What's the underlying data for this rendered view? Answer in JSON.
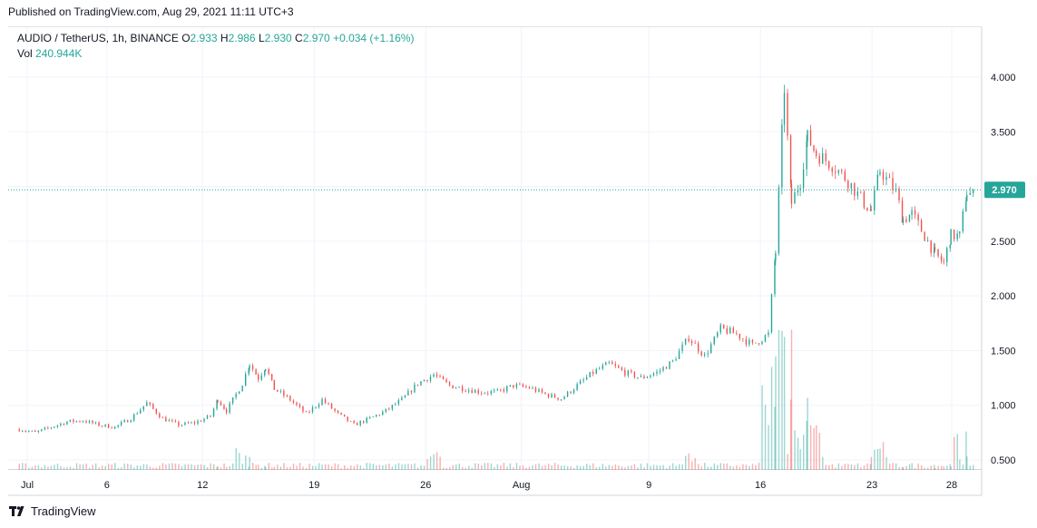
{
  "header": {
    "published": "Published on TradingView.com, Aug 29, 2021 11:11 UTC+3"
  },
  "legend": {
    "symbol": "AUDIO / TetherUS, 1h, BINANCE",
    "o_label": "O",
    "o_value": "2.933",
    "h_label": "H",
    "h_value": "2.986",
    "l_label": "L",
    "l_value": "2.930",
    "c_label": "C",
    "c_value": "2.970",
    "change": "+0.034 (+1.16%)",
    "vol_label": "Vol",
    "vol_value": "240.944K"
  },
  "footer": {
    "brand": "TradingView",
    "logo_icon": "tradingview-logo-icon"
  },
  "colors": {
    "up": "#26a69a",
    "down": "#ef5350",
    "grid": "#f0f3fa",
    "axis": "#d1d4dc"
  },
  "chart_data": {
    "type": "candlestick",
    "symbol": "AUDIO / TetherUS",
    "interval": "1h",
    "exchange": "BINANCE",
    "x_range": [
      "2021-06-30",
      "2021-08-29"
    ],
    "ylim": [
      0.45,
      4.3
    ],
    "y_ticks": [
      "0.500",
      "1.000",
      "1.500",
      "2.000",
      "2.500",
      "3.000",
      "3.500",
      "4.000"
    ],
    "x_ticks": [
      {
        "label": "Jul",
        "date": "2021-07-01"
      },
      {
        "label": "6",
        "date": "2021-07-06"
      },
      {
        "label": "12",
        "date": "2021-07-12"
      },
      {
        "label": "19",
        "date": "2021-07-19"
      },
      {
        "label": "26",
        "date": "2021-07-26"
      },
      {
        "label": "Aug",
        "date": "2021-08-01"
      },
      {
        "label": "9",
        "date": "2021-08-09"
      },
      {
        "label": "16",
        "date": "2021-08-16"
      },
      {
        "label": "23",
        "date": "2021-08-23"
      },
      {
        "label": "28",
        "date": "2021-08-28"
      }
    ],
    "last_price": "2.970",
    "grid": true,
    "price_path": [
      [
        "2021-06-30",
        0.78
      ],
      [
        "2021-07-01",
        0.75
      ],
      [
        "2021-07-02",
        0.8
      ],
      [
        "2021-07-03",
        0.85
      ],
      [
        "2021-07-04",
        0.86
      ],
      [
        "2021-07-05",
        0.82
      ],
      [
        "2021-07-06",
        0.8
      ],
      [
        "2021-07-07",
        0.88
      ],
      [
        "2021-07-08",
        1.02
      ],
      [
        "2021-07-09",
        0.88
      ],
      [
        "2021-07-10",
        0.82
      ],
      [
        "2021-07-11",
        0.84
      ],
      [
        "2021-07-12",
        0.9
      ],
      [
        "2021-07-12",
        1.05
      ],
      [
        "2021-07-13",
        0.95
      ],
      [
        "2021-07-14",
        1.2
      ],
      [
        "2021-07-14",
        1.38
      ],
      [
        "2021-07-15",
        1.25
      ],
      [
        "2021-07-15",
        1.35
      ],
      [
        "2021-07-16",
        1.15
      ],
      [
        "2021-07-17",
        1.05
      ],
      [
        "2021-07-18",
        0.92
      ],
      [
        "2021-07-19",
        1.05
      ],
      [
        "2021-07-20",
        0.92
      ],
      [
        "2021-07-21",
        0.82
      ],
      [
        "2021-07-22",
        0.88
      ],
      [
        "2021-07-23",
        0.95
      ],
      [
        "2021-07-24",
        1.05
      ],
      [
        "2021-07-25",
        1.2
      ],
      [
        "2021-07-26",
        1.28
      ],
      [
        "2021-07-27",
        1.18
      ],
      [
        "2021-07-28",
        1.15
      ],
      [
        "2021-07-29",
        1.12
      ],
      [
        "2021-07-30",
        1.12
      ],
      [
        "2021-07-31",
        1.18
      ],
      [
        "2021-08-01",
        1.16
      ],
      [
        "2021-08-02",
        1.1
      ],
      [
        "2021-08-03",
        1.06
      ],
      [
        "2021-08-04",
        1.18
      ],
      [
        "2021-08-05",
        1.3
      ],
      [
        "2021-08-06",
        1.38
      ],
      [
        "2021-08-07",
        1.3
      ],
      [
        "2021-08-08",
        1.25
      ],
      [
        "2021-08-09",
        1.3
      ],
      [
        "2021-08-10",
        1.4
      ],
      [
        "2021-08-11",
        1.62
      ],
      [
        "2021-08-12",
        1.45
      ],
      [
        "2021-08-13",
        1.7
      ],
      [
        "2021-08-14",
        1.65
      ],
      [
        "2021-08-15",
        1.55
      ],
      [
        "2021-08-16",
        1.65
      ],
      [
        "2021-08-16",
        2.4
      ],
      [
        "2021-08-17",
        3.9
      ],
      [
        "2021-08-17",
        2.85
      ],
      [
        "2021-08-18",
        3.05
      ],
      [
        "2021-08-18",
        3.45
      ],
      [
        "2021-08-19",
        3.3
      ],
      [
        "2021-08-20",
        3.2
      ],
      [
        "2021-08-21",
        3.05
      ],
      [
        "2021-08-22",
        2.85
      ],
      [
        "2021-08-22",
        2.78
      ],
      [
        "2021-08-23",
        3.15
      ],
      [
        "2021-08-24",
        2.95
      ],
      [
        "2021-08-24",
        2.7
      ],
      [
        "2021-08-25",
        2.75
      ],
      [
        "2021-08-26",
        2.5
      ],
      [
        "2021-08-26",
        2.38
      ],
      [
        "2021-08-27",
        2.3
      ],
      [
        "2021-08-27",
        2.55
      ],
      [
        "2021-08-28",
        2.55
      ],
      [
        "2021-08-28",
        2.95
      ],
      [
        "2021-08-29",
        2.9
      ],
      [
        "2021-08-29",
        2.97
      ]
    ],
    "volume_spikes": [
      [
        "2021-08-16",
        0.9
      ],
      [
        "2021-08-17",
        1.0
      ],
      [
        "2021-08-17",
        0.6
      ],
      [
        "2021-08-18",
        0.5
      ],
      [
        "2021-08-19",
        0.4
      ],
      [
        "2021-08-23",
        0.25
      ],
      [
        "2021-08-28",
        0.3
      ],
      [
        "2021-07-14",
        0.2
      ],
      [
        "2021-07-26",
        0.22
      ],
      [
        "2021-08-11",
        0.2
      ]
    ]
  }
}
